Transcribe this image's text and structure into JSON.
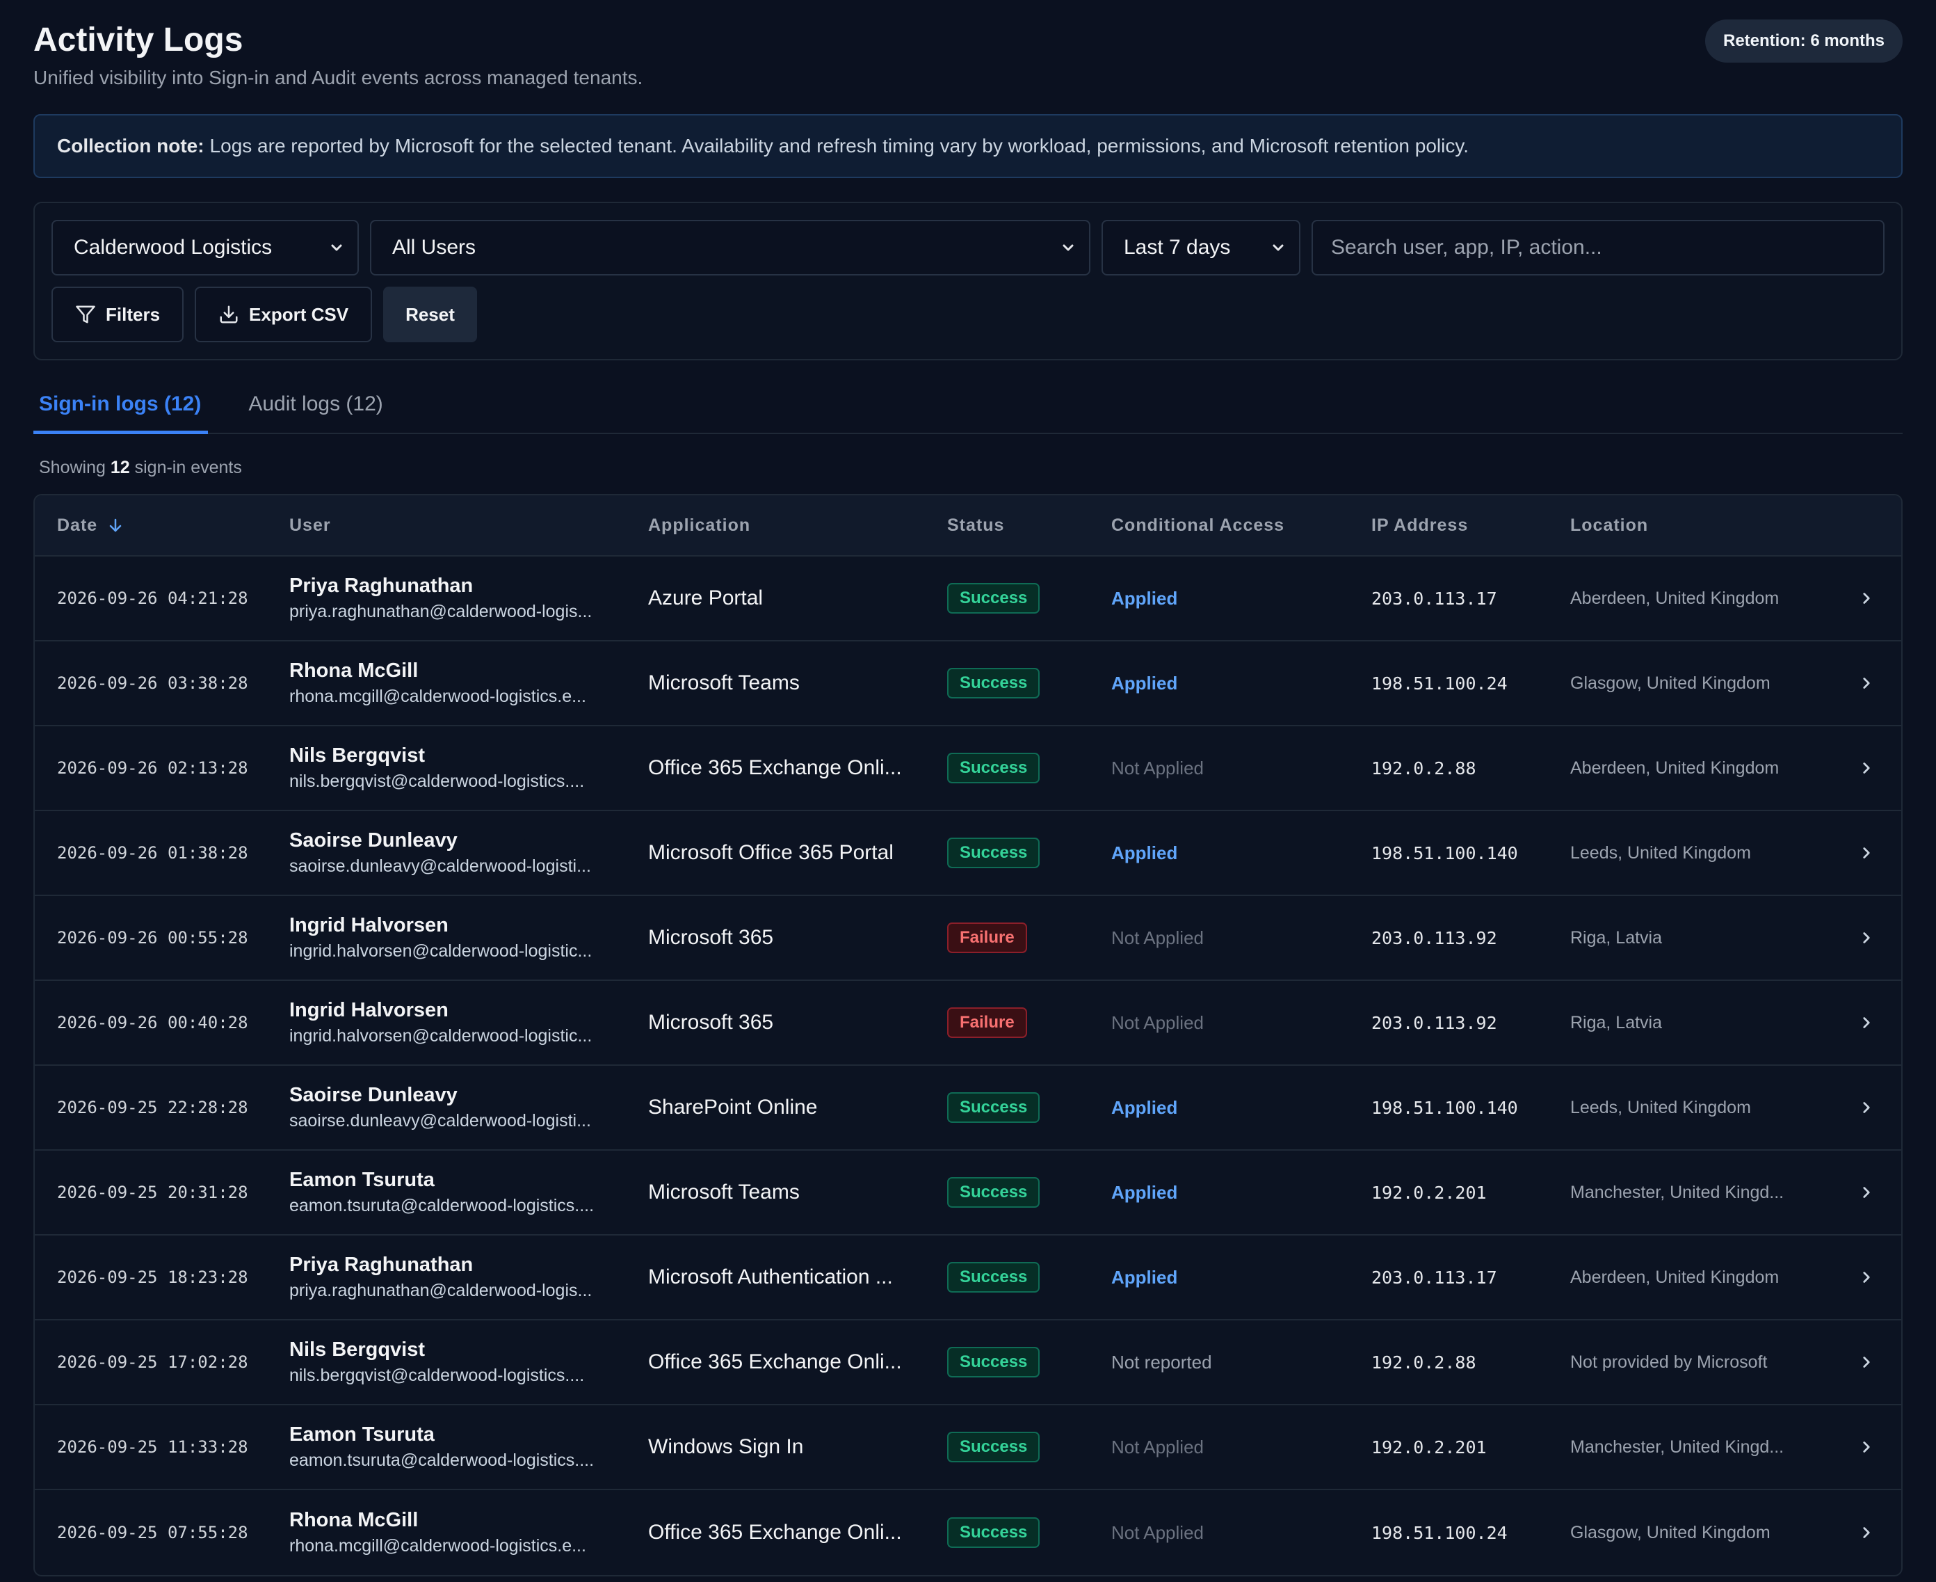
{
  "header": {
    "title": "Activity Logs",
    "subtitle": "Unified visibility into Sign-in and Audit events across managed tenants.",
    "retention_badge": "Retention: 6 months"
  },
  "notice": {
    "label": "Collection note:",
    "text": "Logs are reported by Microsoft for the selected tenant. Availability and refresh timing vary by workload, permissions, and Microsoft retention policy."
  },
  "filters": {
    "tenant": "Calderwood Logistics",
    "user": "All Users",
    "range": "Last 7 days",
    "search_placeholder": "Search user, app, IP, action...",
    "filters_label": "Filters",
    "export_label": "Export CSV",
    "reset_label": "Reset"
  },
  "tabs": [
    {
      "label": "Sign-in logs (12)",
      "active": true
    },
    {
      "label": "Audit logs (12)",
      "active": false
    }
  ],
  "summary": {
    "prefix": "Showing",
    "count": "12",
    "suffix": "sign-in events"
  },
  "table": {
    "columns": [
      "Date",
      "User",
      "Application",
      "Status",
      "Conditional Access",
      "IP Address",
      "Location"
    ],
    "rows": [
      {
        "date": "2026-09-26 04:21:28",
        "name": "Priya Raghunathan",
        "email": "priya.raghunathan@calderwood-logis...",
        "app": "Azure Portal",
        "status": "Success",
        "ca": "Applied",
        "ip": "203.0.113.17",
        "location": "Aberdeen, United Kingdom"
      },
      {
        "date": "2026-09-26 03:38:28",
        "name": "Rhona McGill",
        "email": "rhona.mcgill@calderwood-logistics.e...",
        "app": "Microsoft Teams",
        "status": "Success",
        "ca": "Applied",
        "ip": "198.51.100.24",
        "location": "Glasgow, United Kingdom"
      },
      {
        "date": "2026-09-26 02:13:28",
        "name": "Nils Bergqvist",
        "email": "nils.bergqvist@calderwood-logistics....",
        "app": "Office 365 Exchange Onli...",
        "status": "Success",
        "ca": "Not Applied",
        "ip": "192.0.2.88",
        "location": "Aberdeen, United Kingdom"
      },
      {
        "date": "2026-09-26 01:38:28",
        "name": "Saoirse Dunleavy",
        "email": "saoirse.dunleavy@calderwood-logisti...",
        "app": "Microsoft Office 365 Portal",
        "status": "Success",
        "ca": "Applied",
        "ip": "198.51.100.140",
        "location": "Leeds, United Kingdom"
      },
      {
        "date": "2026-09-26 00:55:28",
        "name": "Ingrid Halvorsen",
        "email": "ingrid.halvorsen@calderwood-logistic...",
        "app": "Microsoft 365",
        "status": "Failure",
        "ca": "Not Applied",
        "ip": "203.0.113.92",
        "location": "Riga, Latvia"
      },
      {
        "date": "2026-09-26 00:40:28",
        "name": "Ingrid Halvorsen",
        "email": "ingrid.halvorsen@calderwood-logistic...",
        "app": "Microsoft 365",
        "status": "Failure",
        "ca": "Not Applied",
        "ip": "203.0.113.92",
        "location": "Riga, Latvia"
      },
      {
        "date": "2026-09-25 22:28:28",
        "name": "Saoirse Dunleavy",
        "email": "saoirse.dunleavy@calderwood-logisti...",
        "app": "SharePoint Online",
        "status": "Success",
        "ca": "Applied",
        "ip": "198.51.100.140",
        "location": "Leeds, United Kingdom"
      },
      {
        "date": "2026-09-25 20:31:28",
        "name": "Eamon Tsuruta",
        "email": "eamon.tsuruta@calderwood-logistics....",
        "app": "Microsoft Teams",
        "status": "Success",
        "ca": "Applied",
        "ip": "192.0.2.201",
        "location": "Manchester, United Kingd..."
      },
      {
        "date": "2026-09-25 18:23:28",
        "name": "Priya Raghunathan",
        "email": "priya.raghunathan@calderwood-logis...",
        "app": "Microsoft Authentication ...",
        "status": "Success",
        "ca": "Applied",
        "ip": "203.0.113.17",
        "location": "Aberdeen, United Kingdom"
      },
      {
        "date": "2026-09-25 17:02:28",
        "name": "Nils Bergqvist",
        "email": "nils.bergqvist@calderwood-logistics....",
        "app": "Office 365 Exchange Onli...",
        "status": "Success",
        "ca": "Not reported",
        "ip": "192.0.2.88",
        "location": "Not provided by Microsoft"
      },
      {
        "date": "2026-09-25 11:33:28",
        "name": "Eamon Tsuruta",
        "email": "eamon.tsuruta@calderwood-logistics....",
        "app": "Windows Sign In",
        "status": "Success",
        "ca": "Not Applied",
        "ip": "192.0.2.201",
        "location": "Manchester, United Kingd..."
      },
      {
        "date": "2026-09-25 07:55:28",
        "name": "Rhona McGill",
        "email": "rhona.mcgill@calderwood-logistics.e...",
        "app": "Office 365 Exchange Onli...",
        "status": "Success",
        "ca": "Not Applied",
        "ip": "198.51.100.24",
        "location": "Glasgow, United Kingdom"
      }
    ]
  },
  "colors": {
    "background": "#0b1120",
    "accent": "#3b82f6",
    "success": "#34d399",
    "failure": "#f87171",
    "applied": "#60a5fa"
  }
}
